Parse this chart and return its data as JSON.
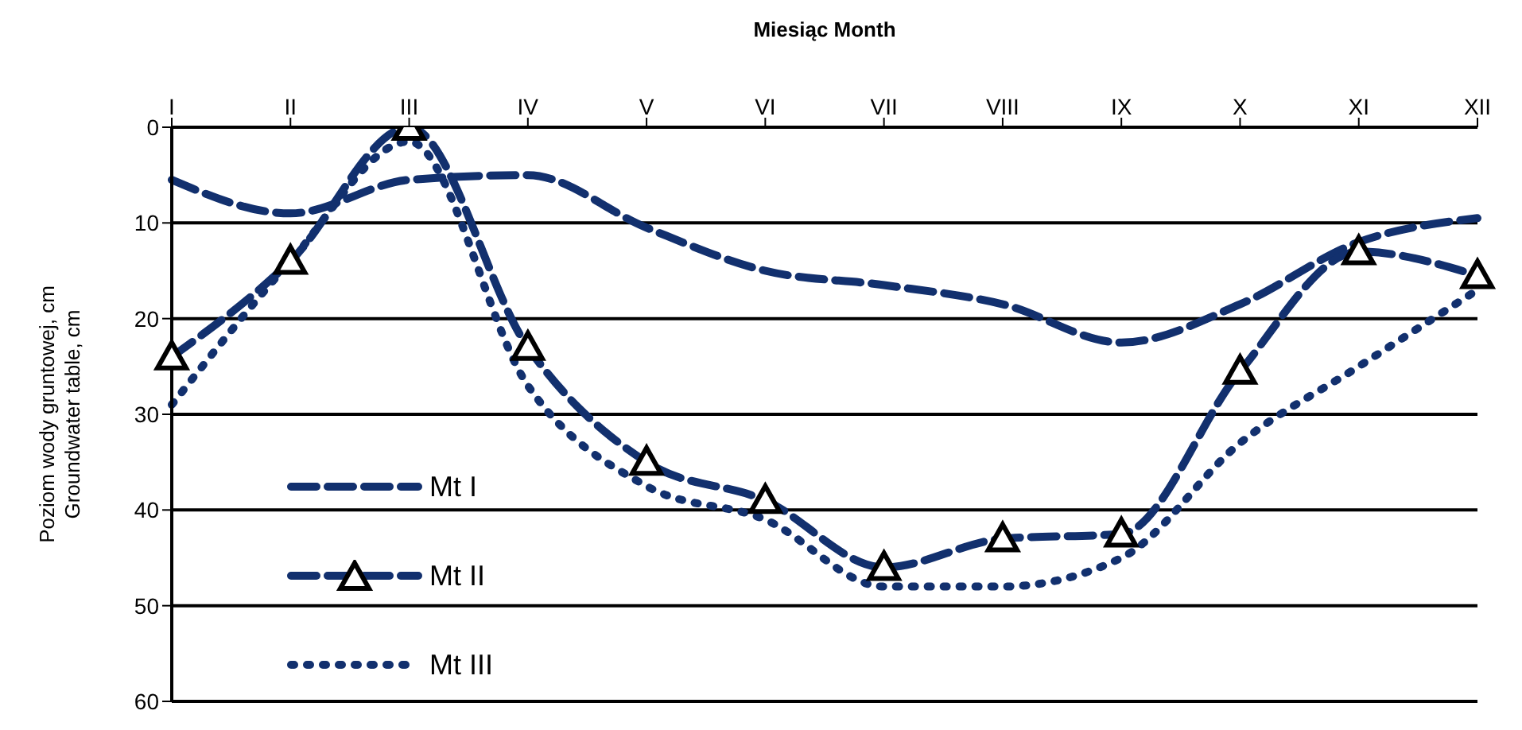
{
  "chart_data": {
    "type": "line",
    "xlabel": "Miesiąc   Month",
    "ylabel": "Poziom wody gruntowej, cm\nGroundwater table, cm",
    "categories": [
      "I",
      "II",
      "III",
      "IV",
      "V",
      "VI",
      "VII",
      "VIII",
      "IX",
      "X",
      "XI",
      "XII"
    ],
    "ylim": [
      60,
      0
    ],
    "yticks": [
      0,
      10,
      20,
      30,
      40,
      50,
      60
    ],
    "grid": "y",
    "legend": "bottom left",
    "series": [
      {
        "name": "Mt I",
        "color": "#12306e",
        "line_style": "dashed",
        "marker": "none",
        "values": [
          5.5,
          9,
          5.5,
          5,
          10.5,
          15,
          16.5,
          18.5,
          22.5,
          18.5,
          12,
          9.5
        ]
      },
      {
        "name": "Mt II",
        "color": "#12306e",
        "line_style": "dashed",
        "marker": "triangle",
        "values": [
          24,
          14,
          0,
          23,
          35,
          39,
          46,
          43,
          42.5,
          25.5,
          13,
          15.5
        ]
      },
      {
        "name": "Mt III",
        "color": "#12306e",
        "line_style": "dotted",
        "marker": "none",
        "values": [
          29,
          14,
          1.5,
          27,
          37.5,
          41,
          48,
          48,
          45,
          33,
          25,
          17
        ]
      }
    ]
  }
}
